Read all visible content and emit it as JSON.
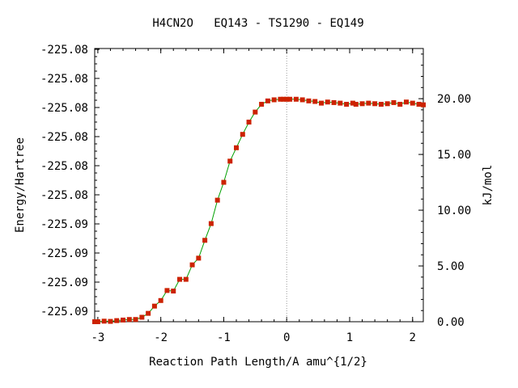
{
  "chart_data": {
    "type": "line",
    "title": "H4CN2O   EQ143 - TS1290 - EQ149",
    "xlabel": "Reaction Path Length/A amu^{1/2}",
    "ylabel_left": "Energy/Hartree",
    "ylabel_right": "kJ/mol",
    "xlim": [
      -3.05,
      2.17
    ],
    "ylim_kj": [
      0.0,
      24.5
    ],
    "x_ticks": [
      {
        "value": -3,
        "label": "-3"
      },
      {
        "value": -2,
        "label": "-2"
      },
      {
        "value": -1,
        "label": "-1"
      },
      {
        "value": 0,
        "label": "0"
      },
      {
        "value": 1,
        "label": "1"
      },
      {
        "value": 2,
        "label": "2"
      }
    ],
    "y_left_tick_labels": [
      "-225.09",
      "-225.09",
      "-225.09",
      "-225.09",
      "-225.08",
      "-225.08",
      "-225.08",
      "-225.08",
      "-225.08",
      "-225.08"
    ],
    "y_right_ticks": [
      {
        "value": 0,
        "label": "0.00"
      },
      {
        "value": 5,
        "label": "5.00"
      },
      {
        "value": 10,
        "label": "10.00"
      },
      {
        "value": 15,
        "label": "15.00"
      },
      {
        "value": 20,
        "label": "20.00"
      }
    ],
    "ts_x": 0,
    "colors": {
      "line": "#00a000",
      "marker": "#cc2200",
      "ts_line": "#999999",
      "axis": "#000000"
    },
    "series": [
      {
        "x": [
          -3.05,
          -3.0,
          -2.9,
          -2.8,
          -2.7,
          -2.6,
          -2.5,
          -2.4,
          -2.3,
          -2.2,
          -2.1,
          -2.0,
          -1.9,
          -1.8,
          -1.7,
          -1.6,
          -1.5,
          -1.4,
          -1.3,
          -1.2,
          -1.1,
          -1.0,
          -0.9,
          -0.8,
          -0.7,
          -0.6,
          -0.5,
          -0.4,
          -0.3,
          -0.2,
          -0.1,
          -0.05,
          0.0,
          0.05,
          0.15,
          0.25,
          0.35,
          0.45,
          0.55,
          0.65,
          0.75,
          0.85,
          0.95,
          1.05,
          1.1,
          1.2,
          1.3,
          1.4,
          1.5,
          1.6,
          1.7,
          1.8,
          1.9,
          2.0,
          2.1,
          2.17
        ],
        "y": [
          0.0,
          0.0,
          0.05,
          0.03,
          0.1,
          0.15,
          0.2,
          0.2,
          0.4,
          0.75,
          1.4,
          1.9,
          2.8,
          2.75,
          3.8,
          3.8,
          5.1,
          5.7,
          7.3,
          8.8,
          10.9,
          12.5,
          14.4,
          15.6,
          16.8,
          17.9,
          18.8,
          19.5,
          19.8,
          19.9,
          19.95,
          19.95,
          19.95,
          19.95,
          19.95,
          19.9,
          19.8,
          19.75,
          19.6,
          19.7,
          19.65,
          19.6,
          19.5,
          19.6,
          19.5,
          19.55,
          19.6,
          19.55,
          19.5,
          19.55,
          19.65,
          19.5,
          19.7,
          19.6,
          19.5,
          19.45
        ]
      }
    ]
  }
}
